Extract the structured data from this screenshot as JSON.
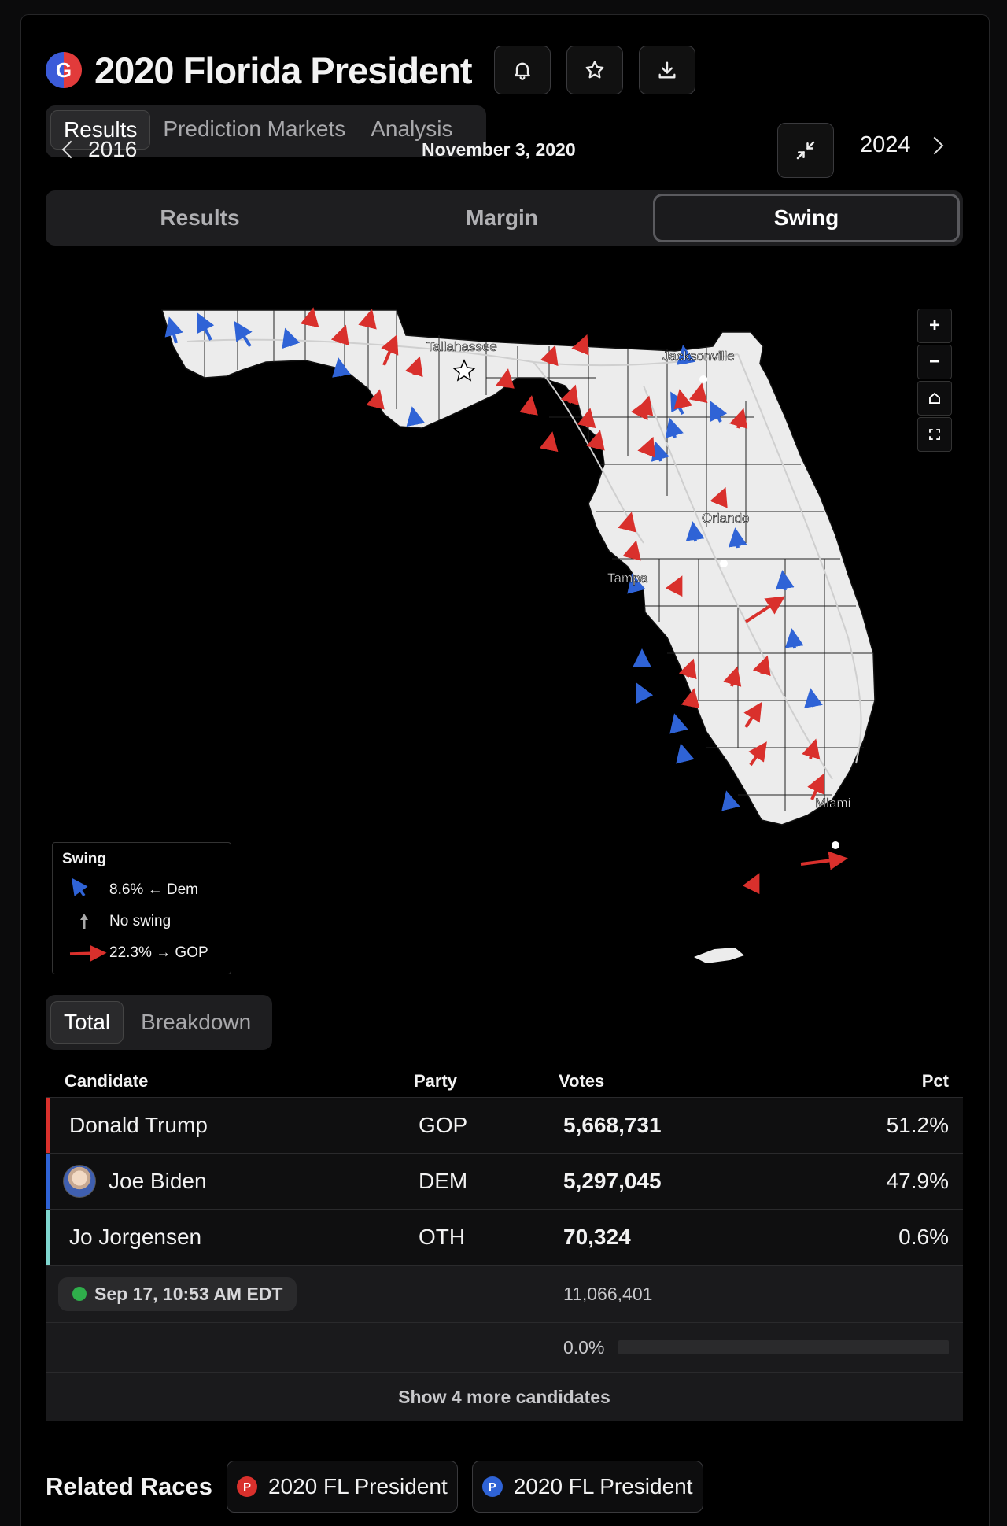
{
  "header": {
    "logo_letter": "G",
    "title": "2020 Florida President",
    "icons": [
      "bell-icon",
      "star-icon",
      "download-icon"
    ]
  },
  "top_tabs": [
    {
      "label": "Results",
      "active": true
    },
    {
      "label": "Prediction Markets",
      "active": false
    },
    {
      "label": "Analysis",
      "active": false
    }
  ],
  "year_nav": {
    "prev_year": "2016",
    "date": "November 3, 2020",
    "next_year": "2024"
  },
  "mode_tabs": [
    {
      "label": "Results",
      "active": false
    },
    {
      "label": "Margin",
      "active": false
    },
    {
      "label": "Swing",
      "active": true
    }
  ],
  "map": {
    "cities": [
      "Tallahassee",
      "Jacksonville",
      "Orlando",
      "Tampa",
      "Miami"
    ],
    "controls": [
      "+",
      "−",
      "home-icon",
      "fullscreen-icon"
    ],
    "colors": {
      "dem": "#2f63d6",
      "gop": "#d9302c",
      "land": "#ececec"
    }
  },
  "legend": {
    "title": "Swing",
    "dem_label": "8.6% ← Dem",
    "none_label": "No swing",
    "gop_label": "22.3% → GOP"
  },
  "view_toggle": [
    {
      "label": "Total",
      "active": true
    },
    {
      "label": "Breakdown",
      "active": false
    }
  ],
  "table": {
    "headers": {
      "candidate": "Candidate",
      "party": "Party",
      "votes": "Votes",
      "pct": "Pct"
    },
    "rows": [
      {
        "name": "Donald Trump",
        "party": "GOP",
        "votes": "5,668,731",
        "pct": "51.2%",
        "color": "#d9302c"
      },
      {
        "name": "Joe Biden",
        "party": "DEM",
        "votes": "5,297,045",
        "pct": "47.9%",
        "color": "#2f63d6"
      },
      {
        "name": "Jo Jorgensen",
        "party": "OTH",
        "votes": "70,324",
        "pct": "0.6%",
        "color": "#7fd6cf"
      }
    ],
    "updated": "Sep 17, 10:53 AM EDT",
    "total_votes": "11,066,401",
    "reporting_pct": "0.0%",
    "reporting_fraction": 0.0,
    "more_label": "Show 4 more candidates"
  },
  "related": {
    "title": "Related Races",
    "races": [
      {
        "badge": "P",
        "label": "2020 FL President",
        "color": "#d9302c"
      },
      {
        "badge": "P",
        "label": "2020 FL President",
        "color": "#2f63d6"
      }
    ]
  }
}
